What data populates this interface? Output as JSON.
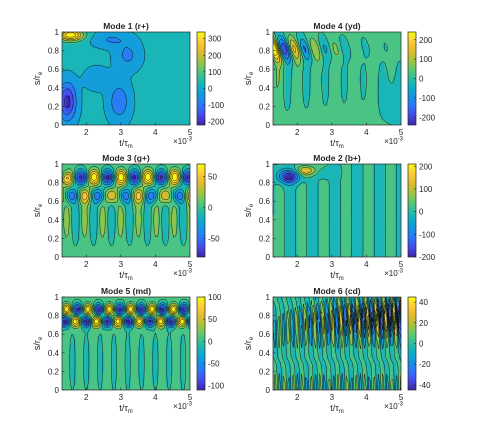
{
  "figure": {
    "background": "#ffffff",
    "colormap": "parula"
  },
  "chart_data": [
    {
      "type": "heatmap",
      "title": "Mode 1 (r+)",
      "xlabel": "t/τm",
      "ylabel": "s/re",
      "xlim": [
        1.3,
        5
      ],
      "ylim": [
        0,
        1
      ],
      "xticks": [
        2,
        3,
        4,
        5
      ],
      "xtick_labels": [
        "2",
        "3",
        "4",
        "5"
      ],
      "x_exponent_label": "×10-3",
      "yticks": [
        0,
        0.2,
        0.4,
        0.6,
        0.8,
        1
      ],
      "ytick_labels": [
        "0",
        "0.2",
        "0.4",
        "0.6",
        "0.8",
        "1"
      ],
      "clim": [
        -220,
        340
      ],
      "colorbar_ticks": [
        -200,
        -100,
        0,
        100,
        200,
        300
      ],
      "colorbar_tick_labels": [
        "-200",
        "-100",
        "0",
        "100",
        "200",
        "300"
      ],
      "pattern": "mode1"
    },
    {
      "type": "heatmap",
      "title": "Mode 4 (yd)",
      "xlabel": "t/τm",
      "ylabel": "s/re",
      "xlim": [
        1.3,
        5
      ],
      "ylim": [
        0,
        1
      ],
      "xticks": [
        2,
        3,
        4,
        5
      ],
      "xtick_labels": [
        "2",
        "3",
        "4",
        "5"
      ],
      "x_exponent_label": "×10-3",
      "yticks": [
        0,
        0.2,
        0.4,
        0.6,
        0.8,
        1
      ],
      "ytick_labels": [
        "0",
        "0.2",
        "0.4",
        "0.6",
        "0.8",
        "1"
      ],
      "clim": [
        -240,
        240
      ],
      "colorbar_ticks": [
        -200,
        -100,
        0,
        100,
        200
      ],
      "colorbar_tick_labels": [
        "-200",
        "-100",
        "0",
        "100",
        "200"
      ],
      "pattern": "mode4"
    },
    {
      "type": "heatmap",
      "title": "Mode 3 (g+)",
      "xlabel": "t/τm",
      "ylabel": "s/re",
      "xlim": [
        1.3,
        5
      ],
      "ylim": [
        0,
        1
      ],
      "xticks": [
        2,
        3,
        4,
        5
      ],
      "xtick_labels": [
        "2",
        "3",
        "4",
        "5"
      ],
      "x_exponent_label": "×10-3",
      "yticks": [
        0,
        0.2,
        0.4,
        0.6,
        0.8,
        1
      ],
      "ytick_labels": [
        "0",
        "0.2",
        "0.4",
        "0.6",
        "0.8",
        "1"
      ],
      "clim": [
        -80,
        70
      ],
      "colorbar_ticks": [
        -50,
        0,
        50
      ],
      "colorbar_tick_labels": [
        "-50",
        "0",
        "50"
      ],
      "pattern": "mode3"
    },
    {
      "type": "heatmap",
      "title": "Mode 2 (b+)",
      "xlabel": "t/τm",
      "ylabel": "s/re",
      "xlim": [
        1.3,
        5
      ],
      "ylim": [
        0,
        1
      ],
      "xticks": [
        2,
        3,
        4,
        5
      ],
      "xtick_labels": [
        "2",
        "3",
        "4",
        "5"
      ],
      "x_exponent_label": "×10-3",
      "yticks": [
        0,
        0.2,
        0.4,
        0.6,
        0.8,
        1
      ],
      "ytick_labels": [
        "0",
        "0.2",
        "0.4",
        "0.6",
        "0.8",
        "1"
      ],
      "clim": [
        -200,
        210
      ],
      "colorbar_ticks": [
        -200,
        -100,
        0,
        100,
        200
      ],
      "colorbar_tick_labels": [
        "-200",
        "-100",
        "0",
        "100",
        "200"
      ],
      "pattern": "mode2"
    },
    {
      "type": "heatmap",
      "title": "Mode 5 (md)",
      "xlabel": "t/τm",
      "ylabel": "s/re",
      "xlim": [
        1.3,
        5
      ],
      "ylim": [
        0,
        1
      ],
      "xticks": [
        2,
        3,
        4,
        5
      ],
      "xtick_labels": [
        "2",
        "3",
        "4",
        "5"
      ],
      "x_exponent_label": "×10-3",
      "yticks": [
        0,
        0.2,
        0.4,
        0.6,
        0.8,
        1
      ],
      "ytick_labels": [
        "0",
        "0.2",
        "0.4",
        "0.6",
        "0.8",
        "1"
      ],
      "clim": [
        -110,
        100
      ],
      "colorbar_ticks": [
        -100,
        -50,
        0,
        50,
        100
      ],
      "colorbar_tick_labels": [
        "-100",
        "-50",
        "0",
        "50",
        "100"
      ],
      "pattern": "mode5"
    },
    {
      "type": "heatmap",
      "title": "Mode 6 (cd)",
      "xlabel": "t/τm",
      "ylabel": "s/re",
      "xlim": [
        1.3,
        5
      ],
      "ylim": [
        0,
        1
      ],
      "xticks": [
        2,
        3,
        4,
        5
      ],
      "xtick_labels": [
        "2",
        "3",
        "4",
        "5"
      ],
      "x_exponent_label": "×10-3",
      "yticks": [
        0,
        0.2,
        0.4,
        0.6,
        0.8,
        1
      ],
      "ytick_labels": [
        "0",
        "0.2",
        "0.4",
        "0.6",
        "0.8",
        "1"
      ],
      "clim": [
        -45,
        45
      ],
      "colorbar_ticks": [
        -40,
        -20,
        0,
        20,
        40
      ],
      "colorbar_tick_labels": [
        "-40",
        "-20",
        "0",
        "20",
        "40"
      ],
      "pattern": "mode6"
    }
  ]
}
